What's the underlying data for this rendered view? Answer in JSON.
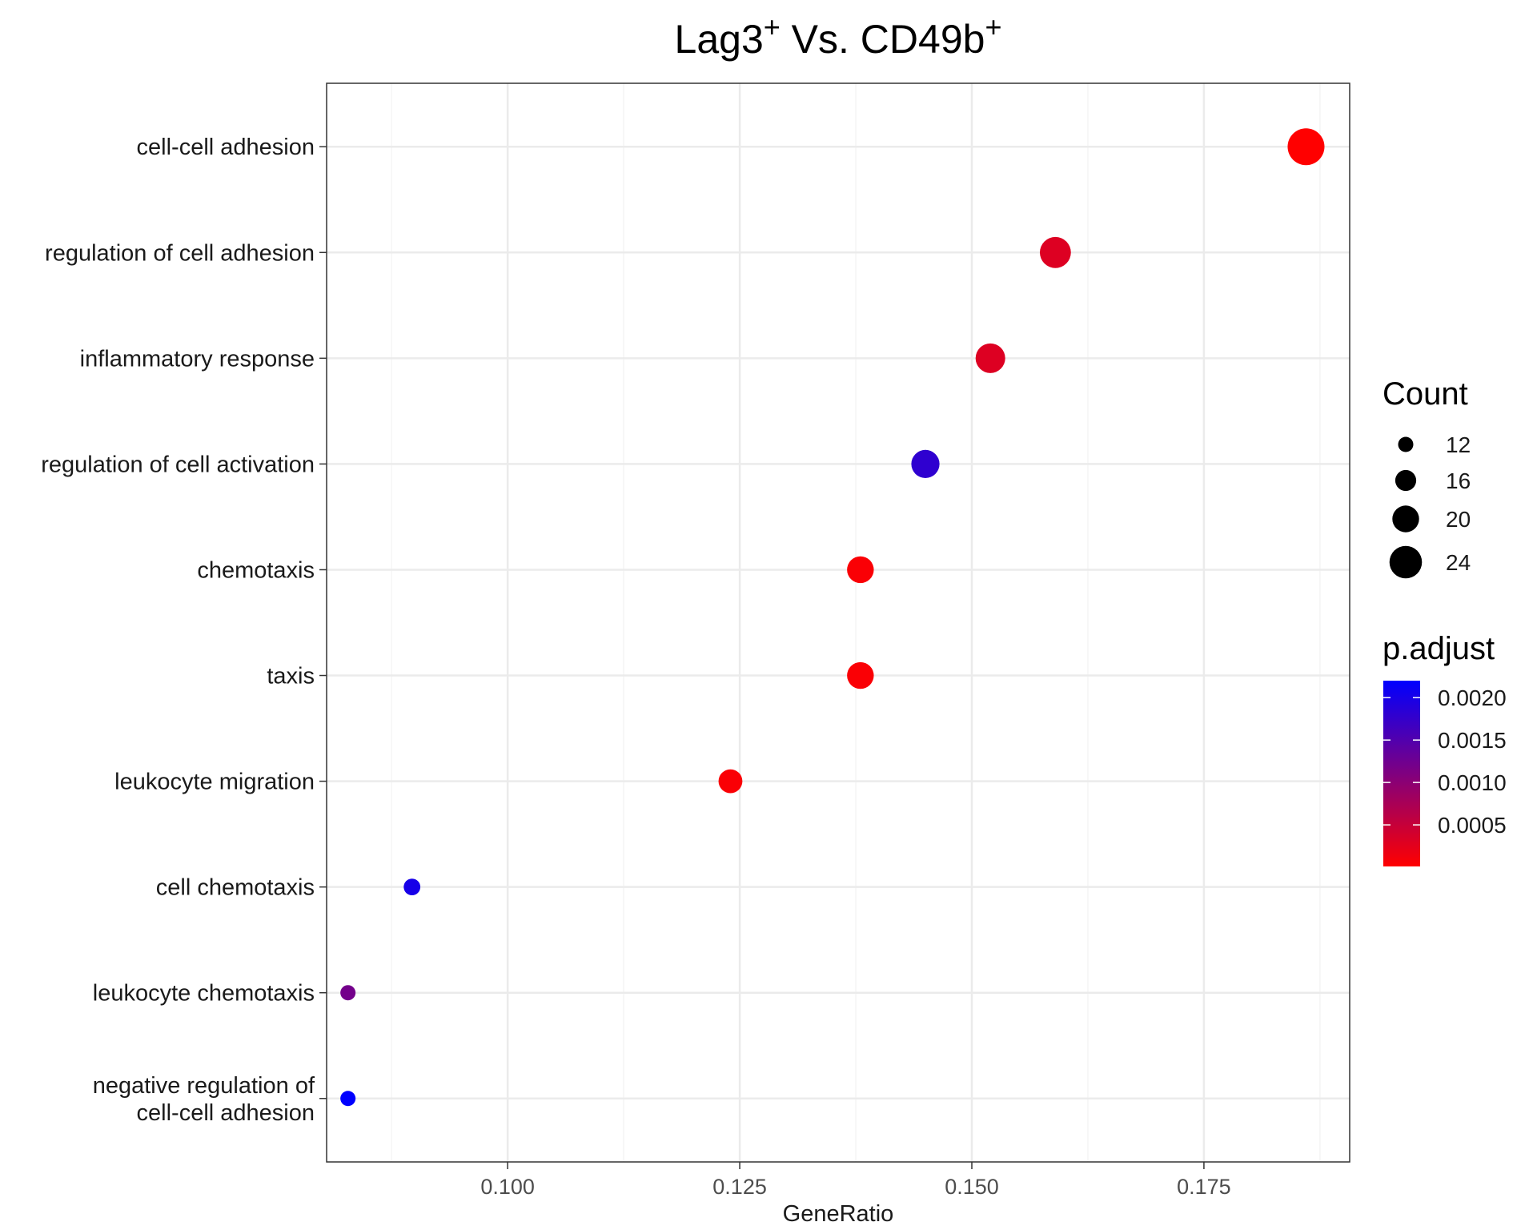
{
  "chart_data": {
    "type": "scatter",
    "title_main": "Lag3",
    "title_sup1": "+",
    "title_mid": " Vs. CD49b",
    "title_sup2": "+",
    "xlabel": "GeneRatio",
    "ylabel": "",
    "xlim": [
      0.0805,
      0.1907
    ],
    "x_ticks": [
      "0.100",
      "0.125",
      "0.150",
      "0.175"
    ],
    "x_tick_values": [
      0.1,
      0.125,
      0.15,
      0.175
    ],
    "categories": [
      "cell-cell adhesion",
      "regulation of cell adhesion",
      "inflammatory response",
      "regulation of cell activation",
      "chemotaxis",
      "taxis",
      "leukocyte migration",
      "cell chemotaxis",
      "leukocyte chemotaxis",
      "negative regulation of cell-cell adhesion"
    ],
    "category_lines": [
      [
        "cell-cell adhesion"
      ],
      [
        "regulation of cell adhesion"
      ],
      [
        "inflammatory response"
      ],
      [
        "regulation of cell activation"
      ],
      [
        "chemotaxis"
      ],
      [
        "taxis"
      ],
      [
        "leukocyte migration"
      ],
      [
        "cell chemotaxis"
      ],
      [
        "leukocyte chemotaxis"
      ],
      [
        "negative regulation of",
        "cell-cell adhesion"
      ]
    ],
    "points": [
      {
        "term": "cell-cell adhesion",
        "x": 0.186,
        "count": 27,
        "p_adjust": 1e-05
      },
      {
        "term": "regulation of cell adhesion",
        "x": 0.159,
        "count": 23,
        "p_adjust": 0.0003
      },
      {
        "term": "inflammatory response",
        "x": 0.152,
        "count": 22,
        "p_adjust": 0.0003
      },
      {
        "term": "regulation of cell activation",
        "x": 0.145,
        "count": 21,
        "p_adjust": 0.0018
      },
      {
        "term": "chemotaxis",
        "x": 0.138,
        "count": 20,
        "p_adjust": 5e-05
      },
      {
        "term": "taxis",
        "x": 0.138,
        "count": 20,
        "p_adjust": 5e-05
      },
      {
        "term": "leukocyte migration",
        "x": 0.124,
        "count": 18,
        "p_adjust": 5e-05
      },
      {
        "term": "cell chemotaxis",
        "x": 0.0897,
        "count": 13,
        "p_adjust": 0.002
      },
      {
        "term": "leukocyte chemotaxis",
        "x": 0.0828,
        "count": 12,
        "p_adjust": 0.0012
      },
      {
        "term": "negative regulation of cell-cell adhesion",
        "x": 0.0828,
        "count": 12,
        "p_adjust": 0.0022
      }
    ],
    "legend_count": {
      "title": "Count",
      "values": [
        12,
        16,
        20,
        24
      ]
    },
    "legend_padjust": {
      "title": "p.adjust",
      "ticks": [
        "0.0020",
        "0.0015",
        "0.0010",
        "0.0005"
      ],
      "tick_values": [
        0.002,
        0.0015,
        0.001,
        0.0005
      ],
      "range": [
        1e-05,
        0.0022
      ],
      "low_color": "#ff0000",
      "high_color": "#0000ff"
    },
    "grid": true,
    "legend_position": "right",
    "colors": {
      "panel_border": "#333333",
      "grid_major": "#ebebeb",
      "grid_minor": "#f5f5f5"
    }
  }
}
